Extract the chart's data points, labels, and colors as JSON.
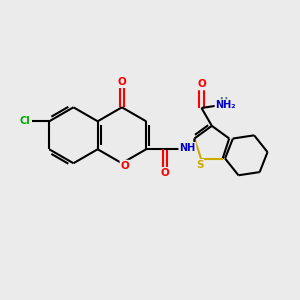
{
  "bg_color": "#ebebeb",
  "bond_color": "#000000",
  "atom_colors": {
    "O": "#ff0000",
    "N": "#0000cd",
    "S": "#ccaa00",
    "Cl": "#00aa00",
    "C": "#000000",
    "H": "#4a7a7a"
  },
  "figsize": [
    3.0,
    3.0
  ],
  "dpi": 100
}
